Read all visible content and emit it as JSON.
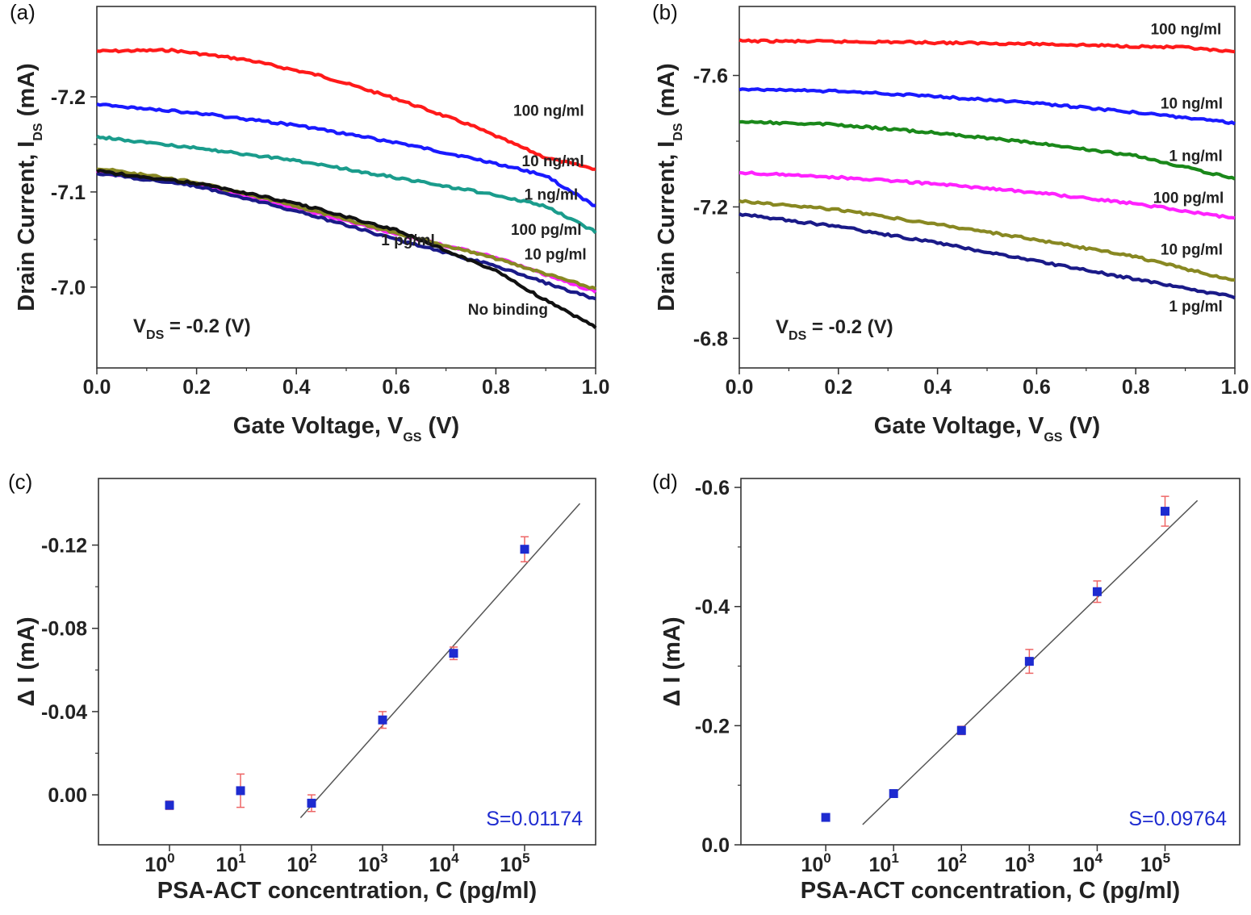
{
  "chart_data": [
    {
      "panel": "(a)",
      "type": "line",
      "xlabel": "Gate Voltage, V",
      "xlabel_sub": "GS",
      "xlabel_unit": "(V)",
      "ylabel": "Drain Current, I",
      "ylabel_sub": "DS",
      "ylabel_unit": "(mA)",
      "xlim": [
        0,
        1.0
      ],
      "ylim": [
        -6.915,
        -7.295
      ],
      "y_reversed": true,
      "xticks": [
        0,
        0.2,
        0.4,
        0.6,
        0.8,
        1.0
      ],
      "xtick_labels": [
        "0.0",
        "0.2",
        "0.4",
        "0.6",
        "0.8",
        "1.0"
      ],
      "yticks": [
        -7.0,
        -7.1,
        -7.2
      ],
      "ytick_labels": [
        "-7.0",
        "-7.1",
        "-7.2"
      ],
      "annotation": {
        "main": "V",
        "sub": "DS",
        "rest": " = -0.2 (V)"
      },
      "series": [
        {
          "name": "100 ng/ml",
          "color": "#ff1a1a",
          "x": [
            0,
            0.15,
            0.3,
            0.45,
            0.6,
            0.75,
            0.9,
            1.0
          ],
          "y": [
            -7.248,
            -7.249,
            -7.239,
            -7.222,
            -7.198,
            -7.17,
            -7.136,
            -7.124
          ]
        },
        {
          "name": "10 ng/ml",
          "color": "#1a1aff",
          "x": [
            0,
            0.2,
            0.4,
            0.6,
            0.8,
            0.9,
            1.0
          ],
          "y": [
            -7.192,
            -7.183,
            -7.17,
            -7.152,
            -7.13,
            -7.117,
            -7.085
          ]
        },
        {
          "name": "1 ng/ml",
          "color": "#1a9c8c",
          "x": [
            0,
            0.2,
            0.4,
            0.6,
            0.8,
            0.9,
            1.0
          ],
          "y": [
            -7.158,
            -7.146,
            -7.133,
            -7.115,
            -7.097,
            -7.085,
            -7.058
          ]
        },
        {
          "name": "100 pg/ml",
          "color": "#ff22ff",
          "x": [
            0,
            0.2,
            0.4,
            0.6,
            0.8,
            1.0
          ],
          "y": [
            -7.121,
            -7.107,
            -7.083,
            -7.056,
            -7.031,
            -6.995
          ]
        },
        {
          "name": "10 pg/ml",
          "color": "#888822",
          "x": [
            0,
            0.2,
            0.4,
            0.6,
            0.8,
            1.0
          ],
          "y": [
            -7.125,
            -7.11,
            -7.085,
            -7.057,
            -7.03,
            -6.998
          ]
        },
        {
          "name": "1 pg/ml",
          "color": "#1a1a88",
          "x": [
            0,
            0.2,
            0.4,
            0.6,
            0.8,
            1.0
          ],
          "y": [
            -7.12,
            -7.106,
            -7.08,
            -7.05,
            -7.022,
            -6.987
          ]
        },
        {
          "name": "No binding",
          "color": "#111111",
          "x": [
            0,
            0.2,
            0.4,
            0.6,
            0.8,
            0.9,
            1.0
          ],
          "y": [
            -7.122,
            -7.109,
            -7.088,
            -7.06,
            -7.017,
            -6.986,
            -6.958
          ]
        }
      ],
      "labels": [
        {
          "text": "100 ng/ml",
          "x": 0.835,
          "y": -7.18
        },
        {
          "text": "10 ng/ml",
          "x": 0.852,
          "y": -7.127
        },
        {
          "text": "1 ng/ml",
          "x": 0.857,
          "y": -7.092
        },
        {
          "text": "100 pg/ml",
          "x": 0.83,
          "y": -7.055
        },
        {
          "text": "10 pg/ml",
          "x": 0.857,
          "y": -7.029
        },
        {
          "text": "1 pg/ml",
          "x": 0.57,
          "y": -7.044
        },
        {
          "text": "No binding",
          "x": 0.744,
          "y": -6.971
        }
      ]
    },
    {
      "panel": "(b)",
      "type": "line",
      "xlabel": "Gate Voltage, V",
      "xlabel_sub": "GS",
      "xlabel_unit": "(V)",
      "ylabel": "Drain Current, I",
      "ylabel_sub": "DS",
      "ylabel_unit": "(mA)",
      "xlim": [
        0,
        1.0
      ],
      "ylim": [
        -6.71,
        -7.81
      ],
      "y_reversed": true,
      "xticks": [
        0,
        0.2,
        0.4,
        0.6,
        0.8,
        1.0
      ],
      "xtick_labels": [
        "0.0",
        "0.2",
        "0.4",
        "0.6",
        "0.8",
        "1.0"
      ],
      "yticks": [
        -6.8,
        -7.2,
        -7.6
      ],
      "ytick_labels": [
        "-6.8",
        "-7.2",
        "-7.6"
      ],
      "annotation": {
        "main": "V",
        "sub": "DS",
        "rest": " = -0.2 (V)"
      },
      "series": [
        {
          "name": "100 ng/ml",
          "color": "#ff1a1a",
          "x": [
            0,
            0.3,
            0.6,
            0.9,
            1.0
          ],
          "y": [
            -7.705,
            -7.702,
            -7.696,
            -7.685,
            -7.67
          ]
        },
        {
          "name": "10 ng/ml",
          "color": "#1a1aff",
          "x": [
            0,
            0.2,
            0.4,
            0.6,
            0.8,
            1.0
          ],
          "y": [
            -7.559,
            -7.552,
            -7.536,
            -7.515,
            -7.488,
            -7.455
          ]
        },
        {
          "name": "1 ng/ml",
          "color": "#1a881a",
          "x": [
            0,
            0.2,
            0.4,
            0.6,
            0.8,
            1.0
          ],
          "y": [
            -7.46,
            -7.45,
            -7.425,
            -7.395,
            -7.355,
            -7.286
          ]
        },
        {
          "name": "100 pg/ml",
          "color": "#ff22ff",
          "x": [
            0,
            0.2,
            0.4,
            0.6,
            0.8,
            1.0
          ],
          "y": [
            -7.305,
            -7.29,
            -7.27,
            -7.243,
            -7.21,
            -7.165
          ]
        },
        {
          "name": "10 pg/ml",
          "color": "#888822",
          "x": [
            0,
            0.2,
            0.4,
            0.6,
            0.8,
            1.0
          ],
          "y": [
            -7.218,
            -7.191,
            -7.147,
            -7.1,
            -7.048,
            -6.975
          ]
        },
        {
          "name": "1 pg/ml",
          "color": "#1a1a88",
          "x": [
            0,
            0.2,
            0.4,
            0.6,
            0.8,
            1.0
          ],
          "y": [
            -7.178,
            -7.14,
            -7.09,
            -7.035,
            -6.98,
            -6.925
          ]
        }
      ],
      "labels": [
        {
          "text": "100 ng/ml",
          "x": 0.83,
          "y": -7.725
        },
        {
          "text": "10 ng/ml",
          "x": 0.85,
          "y": -7.5
        },
        {
          "text": "1 ng/ml",
          "x": 0.867,
          "y": -7.34
        },
        {
          "text": "100 pg/ml",
          "x": 0.835,
          "y": -7.212
        },
        {
          "text": "10 pg/ml",
          "x": 0.85,
          "y": -7.055
        },
        {
          "text": "1 pg/ml",
          "x": 0.867,
          "y": -6.882
        }
      ]
    },
    {
      "panel": "(c)",
      "type": "scatter",
      "xlabel": "PSA-ACT concentration, C (pg/ml)",
      "ylabel": "Δ I (mA)",
      "x_scale": "log",
      "xlim_log10": [
        -1,
        6
      ],
      "ylim": [
        0.024,
        -0.152
      ],
      "y_reversed": true,
      "xticks_log10": [
        0,
        1,
        2,
        3,
        4,
        5
      ],
      "xtick_labels": [
        "10",
        "10",
        "10",
        "10",
        "10",
        "10"
      ],
      "xtick_exponents": [
        "0",
        "1",
        "2",
        "3",
        "4",
        "5"
      ],
      "yticks": [
        0.0,
        -0.04,
        -0.08,
        -0.12
      ],
      "ytick_labels": [
        "0.00",
        "-0.04",
        "-0.08",
        "-0.12"
      ],
      "points": [
        {
          "x": 1,
          "y": 0.005,
          "err": 0.002
        },
        {
          "x": 10,
          "y": -0.002,
          "err": 0.008
        },
        {
          "x": 100,
          "y": 0.004,
          "err": 0.004
        },
        {
          "x": 1000,
          "y": -0.036,
          "err": 0.004
        },
        {
          "x": 10000,
          "y": -0.068,
          "err": 0.003
        },
        {
          "x": 100000,
          "y": -0.118,
          "err": 0.006
        }
      ],
      "fit_line": {
        "x": [
          70,
          600000
        ],
        "y": [
          0.011,
          -0.14
        ]
      },
      "annotation": "S=0.01174"
    },
    {
      "panel": "(d)",
      "type": "scatter",
      "xlabel": "PSA-ACT concentration, C (pg/ml)",
      "ylabel": "Δ I (mA)",
      "x_scale": "log",
      "xlim_log10": [
        -1.25,
        6.1
      ],
      "ylim": [
        0.0,
        -0.615
      ],
      "y_reversed": true,
      "xticks_log10": [
        0,
        1,
        2,
        3,
        4,
        5
      ],
      "xtick_labels": [
        "10",
        "10",
        "10",
        "10",
        "10",
        "10"
      ],
      "xtick_exponents": [
        "0",
        "1",
        "2",
        "3",
        "4",
        "5"
      ],
      "yticks": [
        0.0,
        -0.2,
        -0.4,
        -0.6
      ],
      "ytick_labels": [
        "0.0",
        "-0.2",
        "-0.4",
        "-0.6"
      ],
      "points": [
        {
          "x": 1,
          "y": -0.046,
          "err": 0.003
        },
        {
          "x": 10,
          "y": -0.086,
          "err": 0.003
        },
        {
          "x": 100,
          "y": -0.192,
          "err": 0.007
        },
        {
          "x": 1000,
          "y": -0.308,
          "err": 0.02
        },
        {
          "x": 10000,
          "y": -0.425,
          "err": 0.018
        },
        {
          "x": 100000,
          "y": -0.56,
          "err": 0.025
        }
      ],
      "fit_line": {
        "x": [
          3.5,
          300000
        ],
        "y": [
          -0.034,
          -0.578
        ]
      },
      "annotation": "S=0.09764"
    }
  ]
}
